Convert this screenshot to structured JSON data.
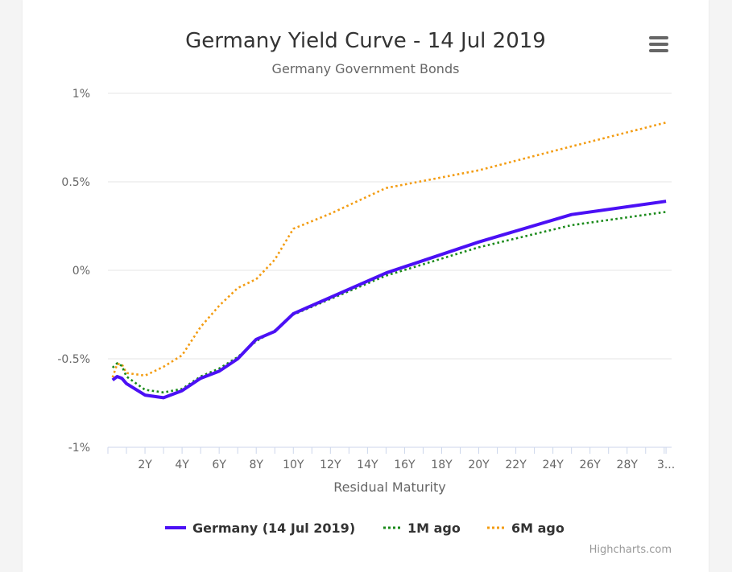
{
  "colors": {
    "germany": "#4b10f5",
    "one_month": "#1a8a1a",
    "six_month": "#f39c12",
    "grid": "#e6e6e6",
    "axis_text": "#666666",
    "title": "#333333"
  },
  "menu": {
    "icon": "hamburger-menu-icon"
  },
  "credit": "Highcharts.com",
  "chart_data": {
    "type": "line",
    "title": "Germany Yield Curve - 14 Jul 2019",
    "subtitle": "Germany Government Bonds",
    "xlabel": "Residual Maturity",
    "ylabel": "",
    "xlim": [
      0,
      30.4
    ],
    "ylim": [
      -1,
      1
    ],
    "y_ticks": [
      {
        "value": 1,
        "label": "1%"
      },
      {
        "value": 0.5,
        "label": "0.5%"
      },
      {
        "value": 0,
        "label": "0%"
      },
      {
        "value": -0.5,
        "label": "-0.5%"
      },
      {
        "value": -1,
        "label": "-1%"
      }
    ],
    "x_ticks": [
      {
        "value": 2,
        "label": "2Y"
      },
      {
        "value": 4,
        "label": "4Y"
      },
      {
        "value": 6,
        "label": "6Y"
      },
      {
        "value": 8,
        "label": "8Y"
      },
      {
        "value": 10,
        "label": "10Y"
      },
      {
        "value": 12,
        "label": "12Y"
      },
      {
        "value": 14,
        "label": "14Y"
      },
      {
        "value": 16,
        "label": "16Y"
      },
      {
        "value": 18,
        "label": "18Y"
      },
      {
        "value": 20,
        "label": "20Y"
      },
      {
        "value": 22,
        "label": "22Y"
      },
      {
        "value": 24,
        "label": "24Y"
      },
      {
        "value": 26,
        "label": "26Y"
      },
      {
        "value": 28,
        "label": "28Y"
      },
      {
        "value": 30.1,
        "label": "3..."
      }
    ],
    "legend": [
      "Germany (14 Jul 2019)",
      "1M ago",
      "6M ago"
    ],
    "series": [
      {
        "name": "Germany (14 Jul 2019)",
        "style": "solid",
        "x": [
          0.25,
          0.5,
          0.75,
          1,
          2,
          3,
          4,
          5,
          6,
          7,
          8,
          9,
          10,
          15,
          20,
          25,
          30.1
        ],
        "values": [
          -0.62,
          -0.6,
          -0.61,
          -0.64,
          -0.705,
          -0.72,
          -0.68,
          -0.61,
          -0.57,
          -0.5,
          -0.39,
          -0.345,
          -0.245,
          -0.015,
          0.16,
          0.315,
          0.39
        ]
      },
      {
        "name": "1M ago",
        "style": "dotted",
        "x": [
          0.25,
          0.5,
          0.75,
          1,
          2,
          3,
          4,
          5,
          6,
          7,
          8,
          9,
          10,
          15,
          20,
          25,
          30.1
        ],
        "values": [
          -0.55,
          -0.525,
          -0.54,
          -0.6,
          -0.675,
          -0.69,
          -0.67,
          -0.6,
          -0.555,
          -0.49,
          -0.4,
          -0.34,
          -0.25,
          -0.03,
          0.13,
          0.255,
          0.33
        ]
      },
      {
        "name": "6M ago",
        "style": "dotted",
        "x": [
          0.25,
          0.5,
          0.75,
          1,
          2,
          3,
          4,
          5,
          6,
          7,
          8,
          9,
          10,
          12,
          15,
          18,
          20,
          25,
          30.1
        ],
        "values": [
          -0.605,
          -0.53,
          -0.53,
          -0.58,
          -0.595,
          -0.545,
          -0.48,
          -0.32,
          -0.2,
          -0.1,
          -0.05,
          0.06,
          0.235,
          0.32,
          0.465,
          0.525,
          0.565,
          0.7,
          0.835
        ]
      }
    ]
  }
}
